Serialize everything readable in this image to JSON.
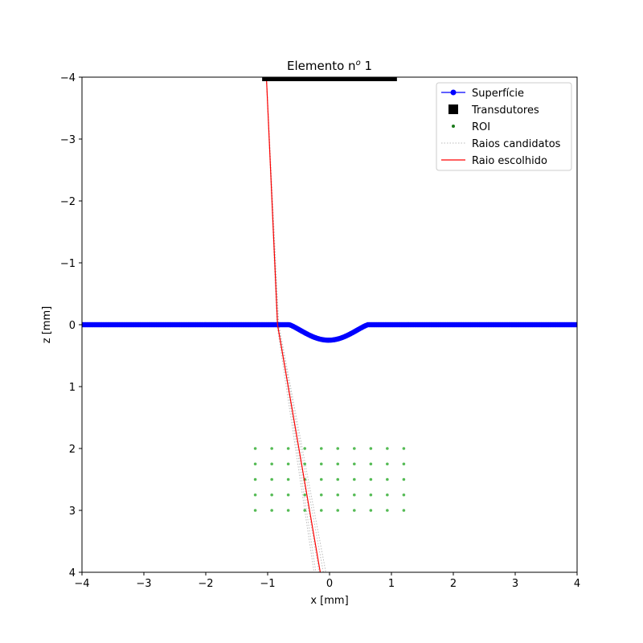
{
  "chart_data": {
    "type": "line",
    "title_main": "Elemento n",
    "title_sup": "o",
    "title_tail": " 1",
    "xlabel": "x [mm]",
    "ylabel": "z [mm]",
    "xlim": [
      -4,
      4
    ],
    "ylim": [
      -4,
      4
    ],
    "y_inverted": true,
    "x_ticks": [
      -4,
      -3,
      -2,
      -1,
      0,
      1,
      2,
      3,
      4
    ],
    "y_ticks": [
      -4,
      -3,
      -2,
      -1,
      0,
      1,
      2,
      3,
      4
    ],
    "x_tick_labels": [
      "−4",
      "−3",
      "−2",
      "−1",
      "0",
      "1",
      "2",
      "3",
      "4"
    ],
    "y_tick_labels": [
      "−4",
      "−3",
      "−2",
      "−1",
      "0",
      "1",
      "2",
      "3",
      "4"
    ],
    "grid": false,
    "legend_position": "top-right",
    "legend": [
      {
        "key": "surface",
        "label": "Superfície"
      },
      {
        "key": "transducers",
        "label": "Transdutores"
      },
      {
        "key": "roi",
        "label": "ROI"
      },
      {
        "key": "candidates",
        "label": "Raios candidatos"
      },
      {
        "key": "chosen",
        "label": "Raio escolhido"
      }
    ],
    "series": [
      {
        "key": "surface",
        "name": "Superfície",
        "color": "#0000ff",
        "marker": "circle",
        "flat_level": 0,
        "dip": {
          "x_start": -0.65,
          "x_end": 0.62,
          "depth": 0.25
        }
      },
      {
        "key": "transducers",
        "name": "Transdutores",
        "color": "#000000",
        "marker": "square",
        "x_range": [
          -1.05,
          1.05
        ],
        "z": -4
      },
      {
        "key": "roi",
        "name": "ROI",
        "color": "#55bb55",
        "marker": "dot",
        "x": [
          -1.2,
          -0.933,
          -0.667,
          -0.4,
          -0.133,
          0.133,
          0.4,
          0.667,
          0.933,
          1.2
        ],
        "z": [
          2,
          2.25,
          2.5,
          2.75,
          3
        ]
      },
      {
        "key": "candidates",
        "name": "Raios candidatos",
        "color": "#bbbbbb",
        "style": "dotted",
        "paths": [
          [
            [
              -1.02,
              -4
            ],
            [
              -0.83,
              0
            ],
            [
              -0.22,
              4
            ]
          ],
          [
            [
              -1.02,
              -4
            ],
            [
              -0.84,
              0
            ],
            [
              -0.17,
              4
            ]
          ],
          [
            [
              -1.02,
              -4
            ],
            [
              -0.83,
              0
            ],
            [
              -0.1,
              4
            ]
          ],
          [
            [
              -1.02,
              -4
            ],
            [
              -0.82,
              0
            ],
            [
              -0.06,
              4
            ]
          ],
          [
            [
              -1.02,
              -4
            ],
            [
              -0.85,
              0
            ],
            [
              -0.25,
              4
            ]
          ]
        ]
      },
      {
        "key": "chosen",
        "name": "Raio escolhido",
        "color": "#ff0000",
        "style": "solid",
        "path": [
          [
            -1.02,
            -4
          ],
          [
            -0.84,
            0
          ],
          [
            -0.15,
            4
          ]
        ]
      }
    ]
  }
}
